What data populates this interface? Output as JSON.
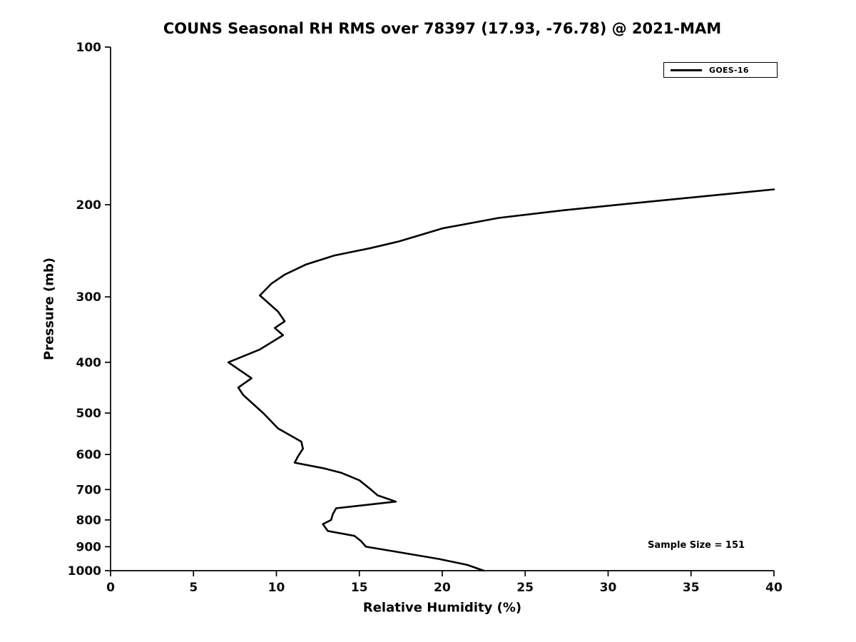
{
  "chart_data": {
    "type": "line",
    "title": "COUNS Seasonal RH RMS over 78397 (17.93, -76.78) @ 2021-MAM",
    "xlabel": "Relative Humidity (%)",
    "ylabel": "Pressure (mb)",
    "xlim": [
      0,
      40
    ],
    "ylim": [
      100,
      1000
    ],
    "y_scale": "log",
    "y_inverted": true,
    "grid": false,
    "x_ticks": [
      0,
      5,
      10,
      15,
      20,
      25,
      30,
      35,
      40
    ],
    "y_ticks": [
      100,
      200,
      300,
      400,
      500,
      600,
      700,
      800,
      900,
      1000
    ],
    "legend": {
      "position": "northeast",
      "entries": [
        {
          "label": "GOES-16",
          "color": "#000000",
          "line_width": 3
        }
      ]
    },
    "annotation": "Sample Size = 151",
    "series": [
      {
        "name": "GOES-16",
        "color": "#000000",
        "points_format": "[relative_humidity_percent, pressure_mb]",
        "points": [
          [
            40.0,
            187
          ],
          [
            32.0,
            198
          ],
          [
            27.3,
            205
          ],
          [
            23.4,
            212
          ],
          [
            20.0,
            222
          ],
          [
            17.4,
            235
          ],
          [
            15.7,
            242
          ],
          [
            13.5,
            250
          ],
          [
            11.8,
            260
          ],
          [
            10.5,
            272
          ],
          [
            9.7,
            283
          ],
          [
            9.0,
            298
          ],
          [
            10.1,
            320
          ],
          [
            10.5,
            334
          ],
          [
            9.9,
            344
          ],
          [
            10.4,
            355
          ],
          [
            9.0,
            378
          ],
          [
            7.1,
            400
          ],
          [
            8.5,
            429
          ],
          [
            7.7,
            447
          ],
          [
            8.0,
            462
          ],
          [
            9.2,
            500
          ],
          [
            10.1,
            535
          ],
          [
            11.5,
            567
          ],
          [
            11.6,
            585
          ],
          [
            11.3,
            605
          ],
          [
            11.1,
            622
          ],
          [
            12.9,
            638
          ],
          [
            13.9,
            650
          ],
          [
            15.0,
            672
          ],
          [
            15.7,
            700
          ],
          [
            16.1,
            718
          ],
          [
            17.2,
            738
          ],
          [
            13.6,
            760
          ],
          [
            13.4,
            780
          ],
          [
            13.3,
            800
          ],
          [
            12.8,
            815
          ],
          [
            13.1,
            840
          ],
          [
            14.7,
            858
          ],
          [
            15.1,
            878
          ],
          [
            15.4,
            900
          ],
          [
            17.2,
            920
          ],
          [
            19.8,
            950
          ],
          [
            21.5,
            975
          ],
          [
            22.5,
            1000
          ]
        ]
      }
    ]
  }
}
